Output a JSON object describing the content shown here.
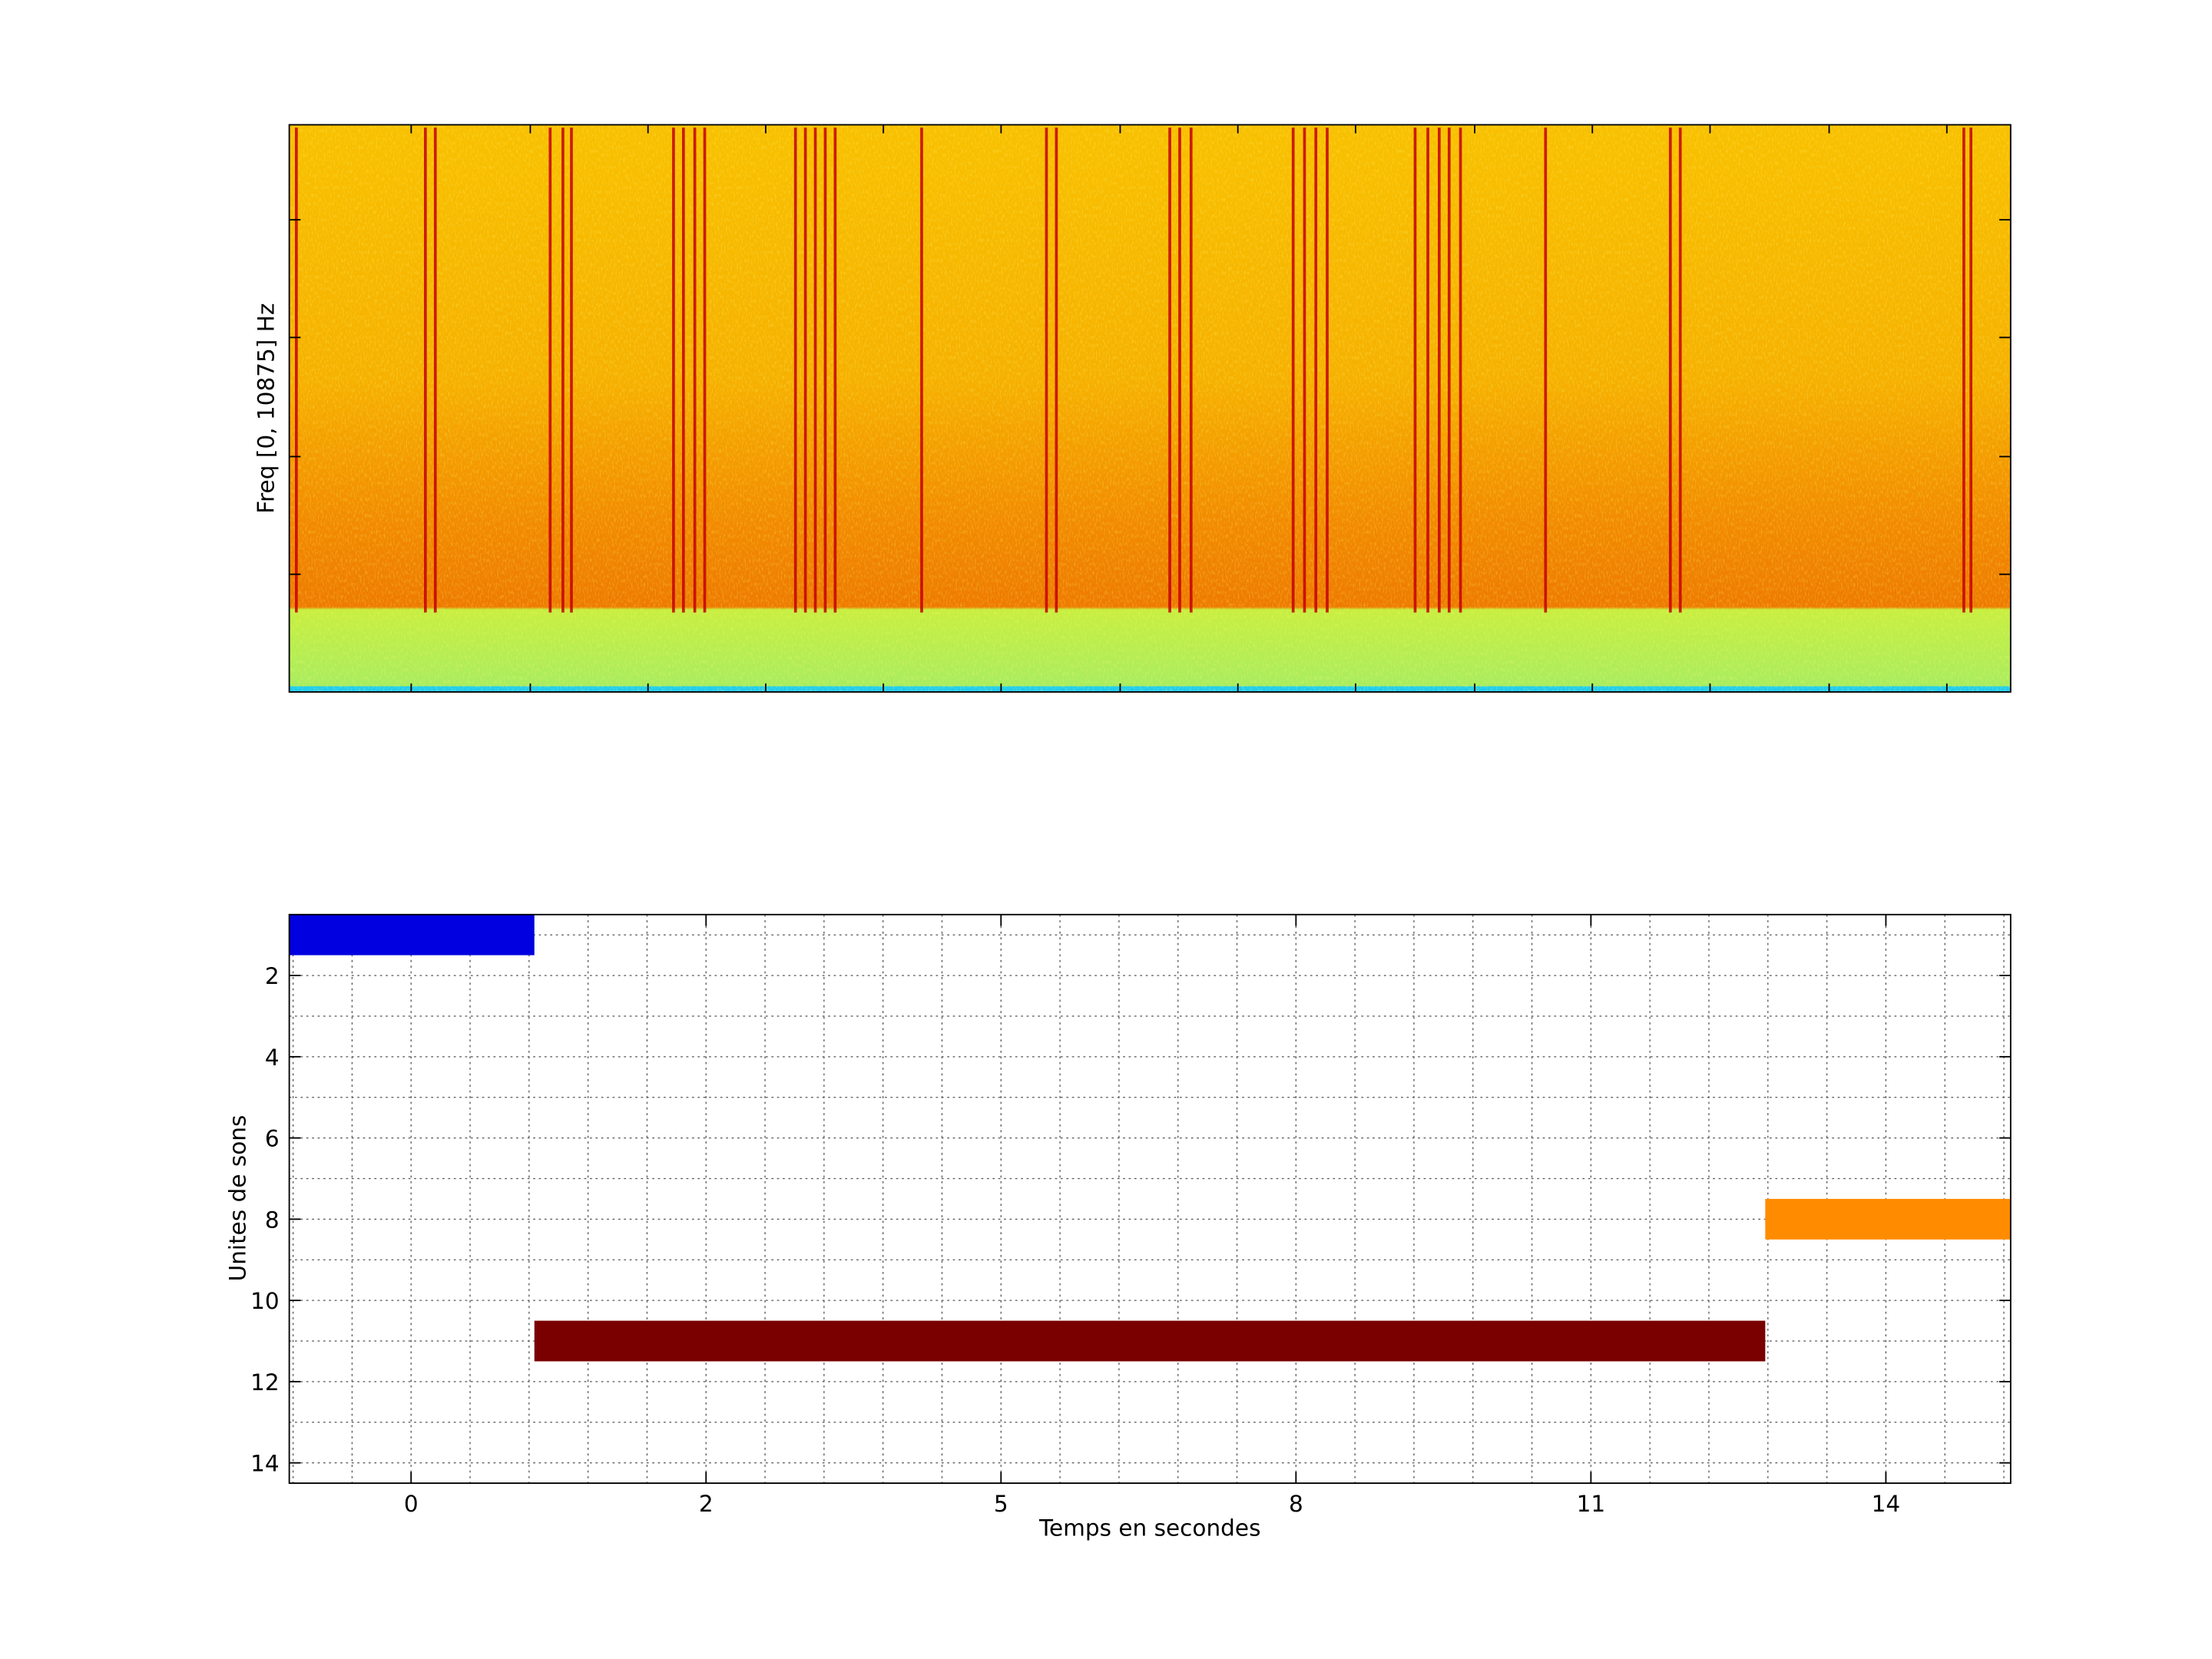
{
  "chart_data": [
    {
      "type": "spectrogram",
      "ylabel": "Freq [0, 10875] Hz"
    },
    {
      "type": "gantt",
      "xlabel": "Temps en secondes",
      "ylabel": "Unites de sons",
      "xlim": [
        0.587,
        6.423
      ],
      "xticks": [
        {
          "value": 1,
          "label": "0"
        },
        {
          "value": 2,
          "label": "2"
        },
        {
          "value": 3,
          "label": "5"
        },
        {
          "value": 4,
          "label": "8"
        },
        {
          "value": 5,
          "label": "11"
        },
        {
          "value": 6,
          "label": "14"
        }
      ],
      "ylim": [
        0.5,
        14.5
      ],
      "yticks": [
        2,
        4,
        6,
        8,
        10,
        12,
        14
      ],
      "y_reversed": true,
      "grid": true,
      "minor_grid": true,
      "bars": [
        {
          "unit": 1,
          "start": 0.587,
          "end": 1.418,
          "color": "#0000e0"
        },
        {
          "unit": 11,
          "start": 1.418,
          "end": 5.591,
          "color": "#7a0000"
        },
        {
          "unit": 8,
          "start": 5.591,
          "end": 6.423,
          "color": "#ff8c00"
        }
      ]
    }
  ]
}
